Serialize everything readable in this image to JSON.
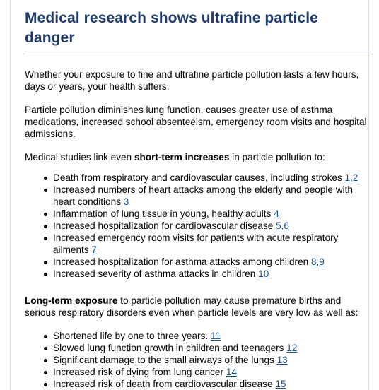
{
  "title": "Medical research shows ultrafine particle danger",
  "para1": "Whether your exposure to fine and ultrafine particle pollution lasts a few hours, days or years, your health suffers.",
  "para2": "Particle pollution diminishes lung function, causes greater use of asthma medications, increased school absenteeism, emergency room visits and hospital admissions.",
  "para3": {
    "before": "Medical studies link even ",
    "bold": "short-term increases",
    "after": " in particle pollution to:"
  },
  "short_term_list": [
    {
      "text": "Death from respiratory and cardiovascular causes, including strokes ",
      "ref": "1,2"
    },
    {
      "text": "Increased numbers of heart attacks among the elderly and people with heart conditions ",
      "ref": "3"
    },
    {
      "text": "Inflammation of lung tissue in young, healthy adults ",
      "ref": "4"
    },
    {
      "text": "Increased hospitalization for cardiovascular disease ",
      "ref": "5,6"
    },
    {
      "text": "Increased emergency room visits for patients with acute respiratory ailments ",
      "ref": "7"
    },
    {
      "text": "Increased hospitalization for asthma attacks among children ",
      "ref": "8,9"
    },
    {
      "text": "Increased severity of asthma attacks in children ",
      "ref": "10"
    }
  ],
  "para4": {
    "bold": "Long-term exposure",
    "after": " to particle pollution may cause premature births and serious respiratory disorders even when particle levels are very low as well as:"
  },
  "long_term_list": [
    {
      "text": "Shortened life by one to three years. ",
      "ref": "11"
    },
    {
      "text": "Slowed lung function growth in children and teenagers ",
      "ref": "12"
    },
    {
      "text": "Significant damage to the small airways of the lungs ",
      "ref": "13"
    },
    {
      "text": "Increased risk of dying from lung cancer ",
      "ref": "14"
    },
    {
      "text": "Increased risk of death from cardiovascular disease ",
      "ref": "15"
    }
  ],
  "colors": {
    "title": "#1f3b6e",
    "link": "#1a4f8a",
    "rule": "#8a97ad"
  }
}
